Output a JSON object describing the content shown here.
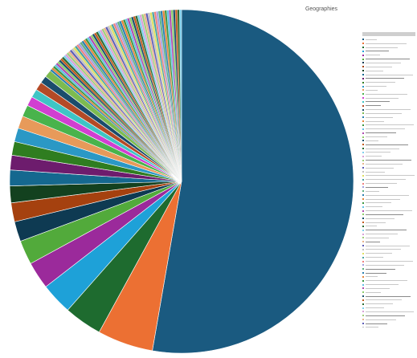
{
  "chart_data": {
    "type": "pie",
    "title": "Geographies",
    "legend_position": "right",
    "start_angle_deg": 0,
    "direction": "clockwise",
    "values": [
      53.3,
      5.3,
      3.6,
      3.0,
      2.6,
      2.3,
      1.9,
      1.8,
      1.6,
      1.5,
      1.4,
      1.3,
      1.3,
      1.2,
      1.1,
      0.9,
      0.8,
      0.8,
      0.7,
      0.7,
      0.2,
      0.2,
      0.2,
      0.2,
      0.2,
      0.2,
      0.2,
      0.2,
      0.2,
      0.2,
      0.2,
      0.2,
      0.2,
      0.2,
      0.2,
      0.2,
      0.2,
      0.2,
      0.2,
      0.2,
      0.2,
      0.2,
      0.2,
      0.2,
      0.2,
      0.2,
      0.2,
      0.2,
      0.2,
      0.2,
      0.2,
      0.2,
      0.2,
      0.2,
      0.2,
      0.2,
      0.2,
      0.2,
      0.2,
      0.2,
      0.2,
      0.2,
      0.2,
      0.2,
      0.2,
      0.2,
      0.2,
      0.2,
      0.2,
      0.2,
      0.2,
      0.2,
      0.2,
      0.2,
      0.2,
      0.2,
      0.2,
      0.2,
      0.2,
      0.2,
      0.2,
      0.2,
      0.2,
      0.2,
      0.2,
      0.2,
      0.2,
      0.2,
      0.2,
      0.2
    ],
    "colors": [
      "#1a5a80",
      "#ec7033",
      "#1e6b2f",
      "#1ea1d8",
      "#9b2a9b",
      "#52aa3b",
      "#0e3a52",
      "#a5410f",
      "#13411f",
      "#15688f",
      "#6d1c6d",
      "#2f7d20",
      "#2b98c5",
      "#e79a5a",
      "#49b34c",
      "#d13fd1",
      "#3ec5c5",
      "#b44a26",
      "#1b4c6c",
      "#7dbb50"
    ],
    "minor_colors": [
      "#2a7fb0",
      "#e5853c",
      "#3b9640",
      "#62c0e6",
      "#b04bb0",
      "#8dce6a",
      "#19506d",
      "#c45a1e",
      "#2c6d35",
      "#7fd0ee",
      "#d8a0d8",
      "#9fcf7a",
      "#e8b48a",
      "#5d5db8",
      "#c0c0c0",
      "#e0e060",
      "#49a3a3",
      "#f08080",
      "#a0a0e0",
      "#60b080"
    ]
  }
}
